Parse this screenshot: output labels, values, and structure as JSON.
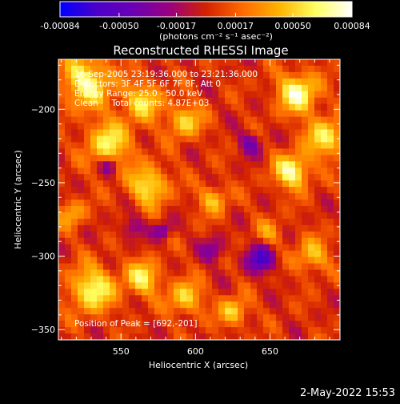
{
  "footer": {
    "date": "2-May-2022 15:53"
  },
  "colorbar": {
    "ticks": [
      "-0.00084",
      "-0.00050",
      "-0.00017",
      "0.00017",
      "0.00050",
      "0.00084"
    ],
    "min": -0.00084,
    "max": 0.00084,
    "colormap": [
      "#0000ff",
      "#4b00c9",
      "#6a00b4",
      "#9a007f",
      "#d32200",
      "#ff6a00",
      "#ffb200",
      "#ffff60",
      "#ffffff"
    ]
  },
  "chart_data": {
    "type": "heatmap",
    "title": "Reconstructed RHESSI Image",
    "colorbar_label_prefix": "(photons cm",
    "colorbar_label_full": "(photons cm⁻² s⁻¹ asec⁻²)",
    "xlabel": "Heliocentric X (arcsec)",
    "ylabel": "Heliocentric Y (arcsec)",
    "xlim": [
      508,
      697
    ],
    "ylim": [
      -357,
      -166
    ],
    "xticks": [
      550,
      600,
      650
    ],
    "yticks": [
      -200,
      -250,
      -300,
      -350
    ],
    "info_lines": [
      "16-Sep-2005 23:19:36.000 to 23:21:36.000",
      "Detectors: 3F 4F 5F 6F 7F 8F, Att 0",
      "Energy Range: 25.0 - 50.0 keV",
      "Clean     Total counts: 4.87E+03"
    ],
    "peak_label": "Position of Peak = [692,-201]"
  }
}
